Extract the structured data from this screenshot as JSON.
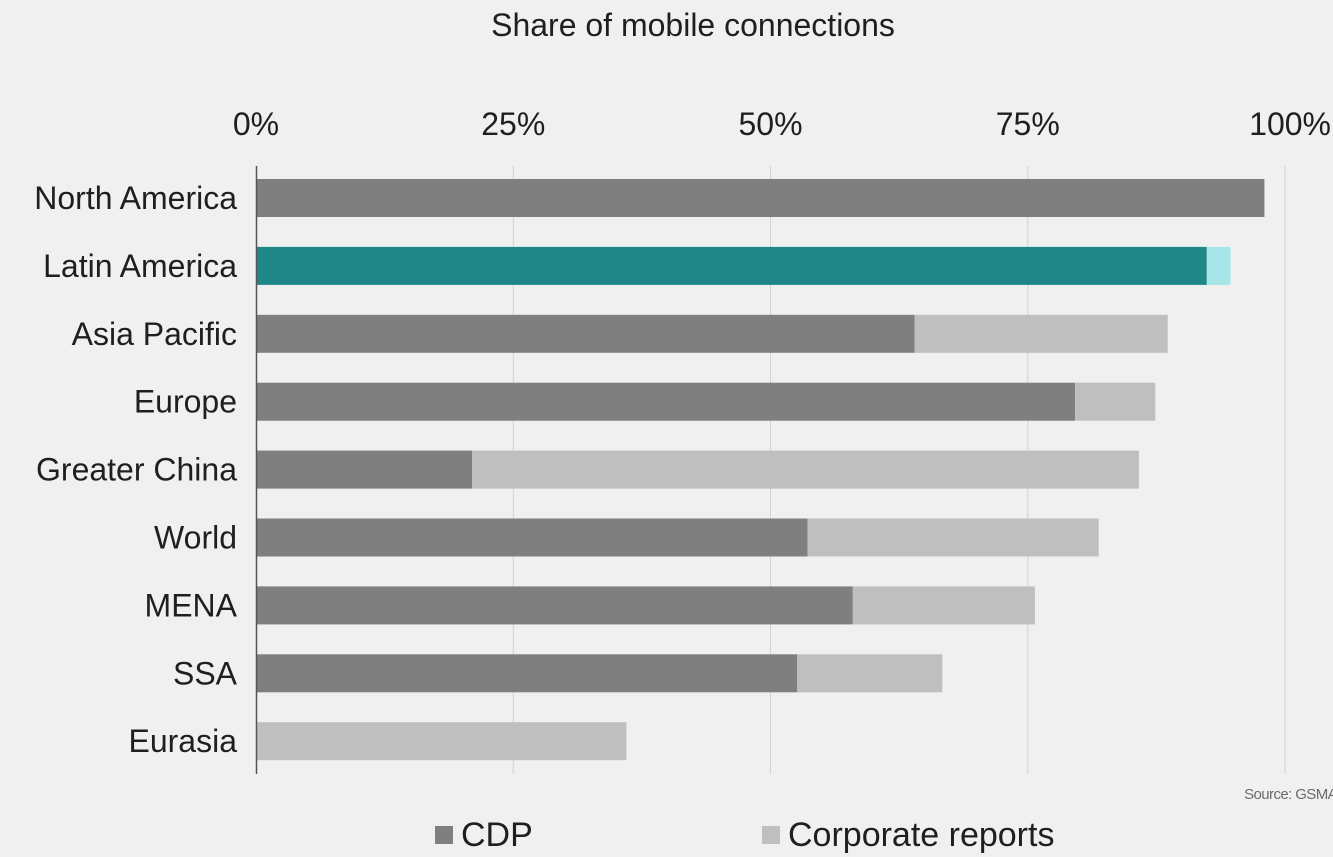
{
  "chart_data": {
    "type": "bar",
    "orientation": "horizontal",
    "stacked": true,
    "title": "Share of mobile connections",
    "categories": [
      "North America",
      "Latin America",
      "Asia Pacific",
      "Europe",
      "Greater China",
      "World",
      "MENA",
      "SSA",
      "Eurasia"
    ],
    "series": [
      {
        "name": "CDP",
        "color": "#7f7f7f",
        "values": [
          98,
          92.4,
          64,
          79.6,
          21,
          53.6,
          58,
          52.6,
          0
        ]
      },
      {
        "name": "Corporate reports",
        "color": "#bfbfbf",
        "values": [
          0,
          2.3,
          24.6,
          7.8,
          64.8,
          28.3,
          17.7,
          14.1,
          36
        ]
      }
    ],
    "highlight": {
      "category": "Latin America",
      "colors": [
        "#1f8787",
        "#a6e6e8"
      ]
    },
    "xlim": [
      0,
      100
    ],
    "xticks": [
      "0%",
      "25%",
      "50%",
      "75%",
      "100%"
    ],
    "grid": true,
    "xaxis_position": "top",
    "legend_position": "bottom"
  },
  "source": "Source: GSMA"
}
